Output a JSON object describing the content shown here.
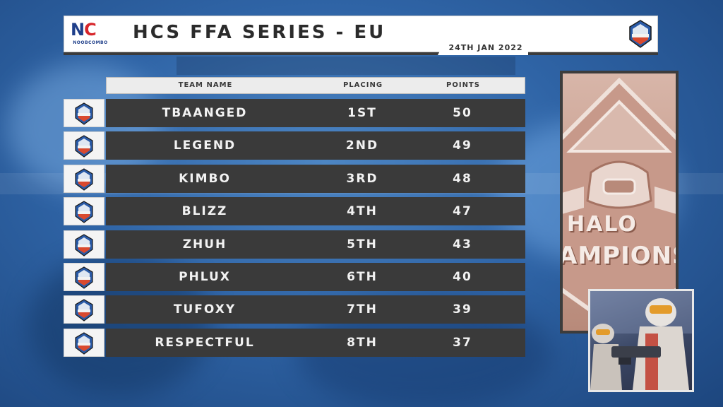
{
  "header": {
    "brand_mark_left": "N",
    "brand_mark_right": "C",
    "brand_sub": "NOOBCOMBO",
    "title": "HCS FFA SERIES - EU",
    "date": "24TH JAN 2022"
  },
  "table": {
    "columns": [
      "TEAM NAME",
      "PLACING",
      "POINTS"
    ],
    "rows": [
      {
        "team": "TBAANGED",
        "placing": "1ST",
        "points": "50"
      },
      {
        "team": "LEGEND",
        "placing": "2ND",
        "points": "49"
      },
      {
        "team": "KIMBO",
        "placing": "3RD",
        "points": "48"
      },
      {
        "team": "BLIZZ",
        "placing": "4TH",
        "points": "47"
      },
      {
        "team": "ZHUH",
        "placing": "5TH",
        "points": "43"
      },
      {
        "team": "PHLUX",
        "placing": "6TH",
        "points": "40"
      },
      {
        "team": "TUFOXY",
        "placing": "7TH",
        "points": "39"
      },
      {
        "team": "RESPECTFUL",
        "placing": "8TH",
        "points": "37"
      }
    ]
  },
  "emblem": {
    "line1": "HALO",
    "line2": "AMPIONSI"
  },
  "colors": {
    "row_bar": "#3a3a3a",
    "background": "#2f64a6",
    "brand_blue": "#1f3f8a",
    "brand_red": "#d7262b"
  },
  "icons": [
    "hcs-championship-badge-icon"
  ]
}
